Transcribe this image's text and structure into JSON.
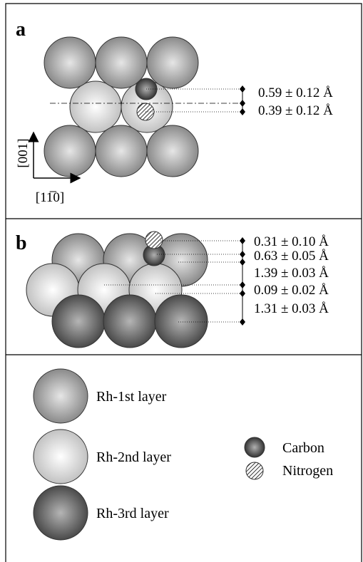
{
  "panel_a": {
    "label": "a",
    "measurements": [
      "0.59 ± 0.12 Å",
      "0.39 ± 0.12 Å"
    ],
    "axis_vertical": "[001]",
    "axis_horizontal": "[11̅0]"
  },
  "panel_b": {
    "label": "b",
    "measurements": [
      "0.31 ± 0.10 Å",
      "0.63 ± 0.05 Å",
      "1.39 ± 0.03 Å",
      "0.09 ± 0.02 Å",
      "1.31 ± 0.03 Å"
    ]
  },
  "legend": {
    "items": [
      "Rh-1st layer",
      "Rh-2nd layer",
      "Rh-3rd layer",
      "Carbon",
      "Nitrogen"
    ]
  }
}
